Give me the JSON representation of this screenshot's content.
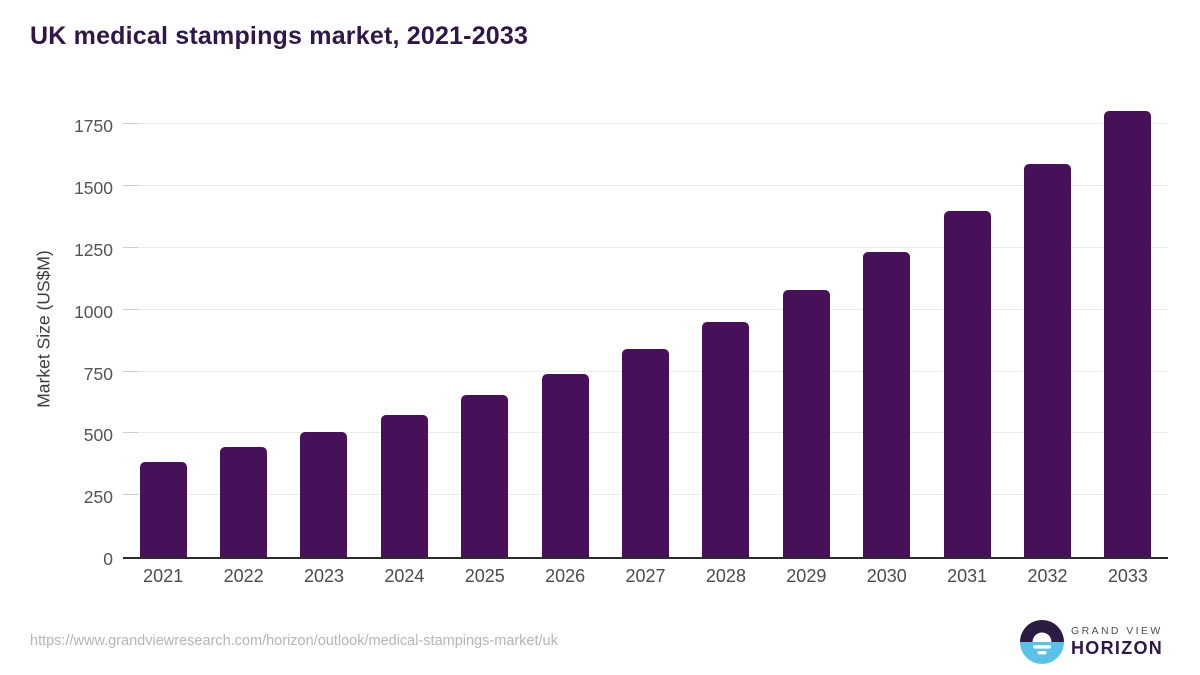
{
  "page": {
    "title": "UK medical stampings market, 2021-2033",
    "source_url": "https://www.grandviewresearch.com/horizon/outlook/medical-stampings-market/uk"
  },
  "logo": {
    "line1": "GRAND VIEW",
    "line2": "HORIZON",
    "icon": "sunrise-horizon-circle",
    "navy": "#2b1b43",
    "blue": "#5bc1e8"
  },
  "colors": {
    "bar": "#481058",
    "title": "#2f1747",
    "axis_text": "#545454",
    "gridline": "#ebebee",
    "baseline": "#2b2b2b",
    "url_text": "#b5b5b5"
  },
  "chart_data": {
    "type": "bar",
    "title": "UK medical stampings market, 2021-2033",
    "categories": [
      "2021",
      "2022",
      "2023",
      "2024",
      "2025",
      "2026",
      "2027",
      "2028",
      "2029",
      "2030",
      "2031",
      "2032",
      "2033"
    ],
    "values": [
      385,
      445,
      505,
      575,
      655,
      740,
      840,
      950,
      1080,
      1235,
      1400,
      1590,
      1805
    ],
    "xlabel": "",
    "ylabel": "Market Size (US$M)",
    "ylim": [
      0,
      1860
    ],
    "yticks": [
      0,
      250,
      500,
      750,
      1000,
      1250,
      1500,
      1750
    ],
    "grid": true,
    "legend": false,
    "bar_color": "#481058"
  }
}
